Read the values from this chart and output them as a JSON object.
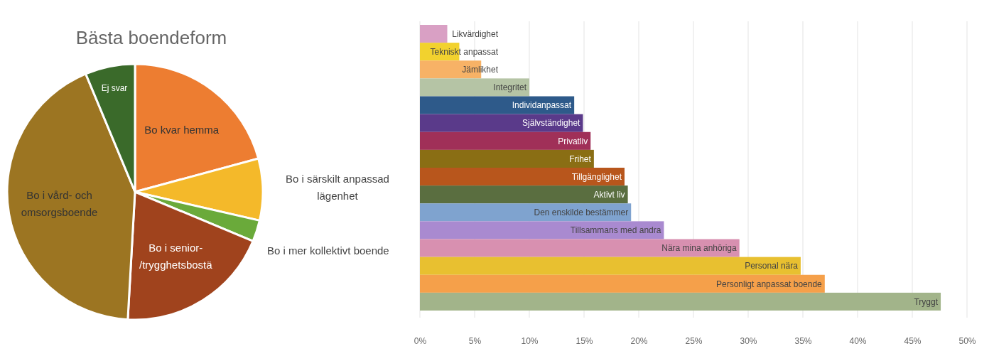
{
  "chart_data": [
    {
      "type": "pie",
      "title": "Bästa boendeform",
      "categories": [
        "Bo kvar hemma",
        "Bo i särskilt anpassad lägenhet",
        "Bo i mer kollektivt boende",
        "Bo i senior-/trygghetsbostä",
        "Bo i vård- och omsorgsboende",
        "Ej svar"
      ],
      "values": [
        20.8,
        7.8,
        2.7,
        19.6,
        42.8,
        6.3
      ],
      "colors": [
        "#ed7d31",
        "#f4b92a",
        "#6aaa3a",
        "#a0431d",
        "#9c7522",
        "#3a6a2a"
      ]
    },
    {
      "type": "bar",
      "orientation": "horizontal",
      "categories": [
        "Likvärdighet",
        "Tekniskt anpassat",
        "Jämlikhet",
        "Integritet",
        "Individanpassat",
        "Självständighet",
        "Privatliv",
        "Frihet",
        "Tillgänglighet",
        "Aktivt liv",
        "Den enskilde bestämmer",
        "Tillsammans med andra",
        "Nära mina anhöriga",
        "Personal nära",
        "Personligt anpassat boende",
        "Tryggt"
      ],
      "values": [
        2.5,
        3.6,
        5.6,
        10.0,
        14.1,
        14.9,
        15.6,
        15.9,
        18.7,
        19.0,
        19.3,
        22.3,
        29.2,
        34.8,
        37.0,
        47.6
      ],
      "colors": [
        "#d9a0c4",
        "#f2d22e",
        "#f7b266",
        "#b5c4a5",
        "#2e5a8a",
        "#5a3a8a",
        "#a03058",
        "#8a6e14",
        "#b8561c",
        "#5a6e40",
        "#7fa3cf",
        "#a98ad0",
        "#d890b0",
        "#e8c030",
        "#f5a04a",
        "#a2b48a"
      ],
      "xlim": [
        0,
        50
      ],
      "xticks": [
        {
          "value": 0,
          "label": "0%"
        },
        {
          "value": 5,
          "label": "5%"
        },
        {
          "value": 10,
          "label": "10%"
        },
        {
          "value": 15,
          "label": "15%"
        },
        {
          "value": 20,
          "label": "20%"
        },
        {
          "value": 25,
          "label": "25%"
        },
        {
          "value": 30,
          "label": "30%"
        },
        {
          "value": 35,
          "label": "35%"
        },
        {
          "value": 40,
          "label": "40%"
        },
        {
          "value": 45,
          "label": "45%"
        },
        {
          "value": 50,
          "label": "50%"
        }
      ],
      "grid": "x",
      "tick_labels": "x"
    }
  ]
}
